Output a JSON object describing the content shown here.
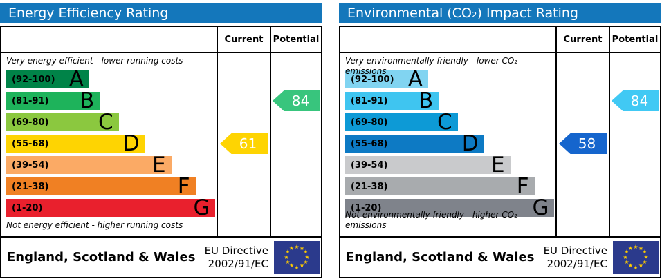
{
  "chart_data": [
    {
      "type": "bar",
      "title": "Energy Efficiency Rating",
      "subtitle_top": "Very energy efficient - lower running costs",
      "subtitle_bottom": "Not energy efficient - higher running costs",
      "categories": [
        "A (92-100)",
        "B (81-91)",
        "C (69-80)",
        "D (55-68)",
        "E (39-54)",
        "F (21-38)",
        "G (1-20)"
      ],
      "current": 61,
      "current_band": "D",
      "potential": 84,
      "potential_band": "B",
      "region": "England, Scotland & Wales",
      "directive": "EU Directive 2002/91/EC"
    },
    {
      "type": "bar",
      "title": "Environmental (CO₂) Impact Rating",
      "subtitle_top": "Very environmentally friendly - lower CO₂ emissions",
      "subtitle_bottom": "Not environmentally friendly - higher CO₂ emissions",
      "categories": [
        "A (92-100)",
        "B (81-91)",
        "C (69-80)",
        "D (55-68)",
        "E (39-54)",
        "F (21-38)",
        "G (1-20)"
      ],
      "current": 58,
      "current_band": "D",
      "potential": 84,
      "potential_band": "B",
      "region": "England, Scotland & Wales",
      "directive": "EU Directive 2002/91/EC"
    }
  ],
  "panels": [
    {
      "title": "Energy Efficiency Rating",
      "header": {
        "current": "Current",
        "potential": "Potential"
      },
      "top_note": "Very energy efficient - lower running costs",
      "bottom_note": "Not energy efficient - higher running costs",
      "bands": [
        {
          "range": "(92-100)",
          "letter": "A",
          "color": "#008348",
          "width_pct": 34
        },
        {
          "range": "(81-91)",
          "letter": "B",
          "color": "#1eb35b",
          "width_pct": 44.5
        },
        {
          "range": "(69-80)",
          "letter": "C",
          "color": "#8bc83f",
          "width_pct": 53.5
        },
        {
          "range": "(55-68)",
          "letter": "D",
          "color": "#fed402",
          "width_pct": 66
        },
        {
          "range": "(39-54)",
          "letter": "E",
          "color": "#fbaa65",
          "width_pct": 78.5
        },
        {
          "range": "(21-38)",
          "letter": "F",
          "color": "#f08023",
          "width_pct": 90
        },
        {
          "range": "(1-20)",
          "letter": "G",
          "color": "#e9202d",
          "width_pct": 99.5
        }
      ],
      "current": {
        "value": "61",
        "band_index": 3,
        "color": "#fed402"
      },
      "potential": {
        "value": "84",
        "band_index": 1,
        "color": "#38c57d"
      },
      "footer": {
        "region": "England, Scotland & Wales",
        "directive_line1": "EU Directive",
        "directive_line2": "2002/91/EC"
      }
    },
    {
      "title": "Environmental (CO₂) Impact Rating",
      "header": {
        "current": "Current",
        "potential": "Potential"
      },
      "top_note": "Very environmentally friendly - lower CO₂ emissions",
      "bottom_note": "Not environmentally friendly - higher CO₂ emissions",
      "bands": [
        {
          "range": "(92-100)",
          "letter": "A",
          "color": "#81d4f1",
          "width_pct": 34
        },
        {
          "range": "(81-91)",
          "letter": "B",
          "color": "#3fc5f0",
          "width_pct": 44.5
        },
        {
          "range": "(69-80)",
          "letter": "C",
          "color": "#0d9ad6",
          "width_pct": 53.5
        },
        {
          "range": "(55-68)",
          "letter": "D",
          "color": "#0d7ac4",
          "width_pct": 66
        },
        {
          "range": "(39-54)",
          "letter": "E",
          "color": "#c9cacc",
          "width_pct": 78.5
        },
        {
          "range": "(21-38)",
          "letter": "F",
          "color": "#a8abae",
          "width_pct": 90
        },
        {
          "range": "(1-20)",
          "letter": "G",
          "color": "#7f838b",
          "width_pct": 99.5
        }
      ],
      "current": {
        "value": "58",
        "band_index": 3,
        "color": "#1565cd"
      },
      "potential": {
        "value": "84",
        "band_index": 1,
        "color": "#41c9f4"
      },
      "footer": {
        "region": "England, Scotland & Wales",
        "directive_line1": "EU Directive",
        "directive_line2": "2002/91/EC"
      }
    }
  ],
  "colors": {
    "title_bar": "#1477bb",
    "eu_flag_blue": "#2b3a8c",
    "eu_flag_star": "#ffcc00",
    "arrow_text": "#ffffff"
  }
}
